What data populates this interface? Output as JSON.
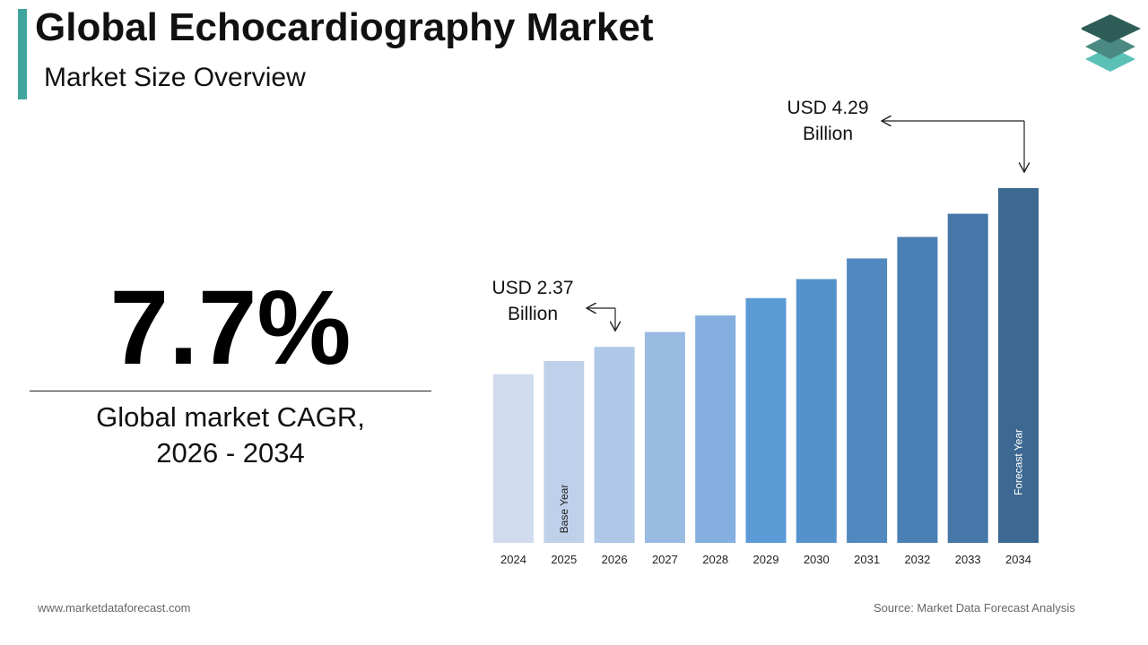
{
  "header": {
    "title": "Global Echocardiography Market",
    "subtitle": "Market Size Overview",
    "accent_color": "#3fa59d"
  },
  "logo": {
    "icon": "stacked-layers-icon",
    "colors": [
      "#2e5d58",
      "#4a8a82",
      "#5bc1b7"
    ]
  },
  "cagr": {
    "value": "7.7%",
    "label_line1": "Global market CAGR,",
    "label_line2": "2026 - 2034"
  },
  "chart_data": {
    "type": "bar",
    "categories": [
      "2024",
      "2025",
      "2026",
      "2027",
      "2028",
      "2029",
      "2030",
      "2031",
      "2032",
      "2033",
      "2034"
    ],
    "values": [
      2.04,
      2.2,
      2.37,
      2.55,
      2.75,
      2.96,
      3.19,
      3.44,
      3.7,
      3.98,
      4.29
    ],
    "colors": [
      "#d0dcee",
      "#bfd1ea",
      "#afc8e7",
      "#99bbe2",
      "#84afde",
      "#5b9bd5",
      "#5591cb",
      "#5088bf",
      "#4a7fb3",
      "#4577a8",
      "#3d6891"
    ],
    "annotations": [
      {
        "category": "2026",
        "line1": "USD 2.37",
        "line2": "Billion"
      },
      {
        "category": "2034",
        "line1": "USD 4.29",
        "line2": "Billion"
      }
    ],
    "bar_labels": [
      {
        "category": "2025",
        "text": "Base Year"
      },
      {
        "category": "2034",
        "text": "Forecast Year"
      }
    ],
    "grid": false,
    "legend": "none"
  },
  "footer": {
    "website": "www.marketdataforecast.com",
    "source": "Source: Market Data Forecast Analysis"
  }
}
